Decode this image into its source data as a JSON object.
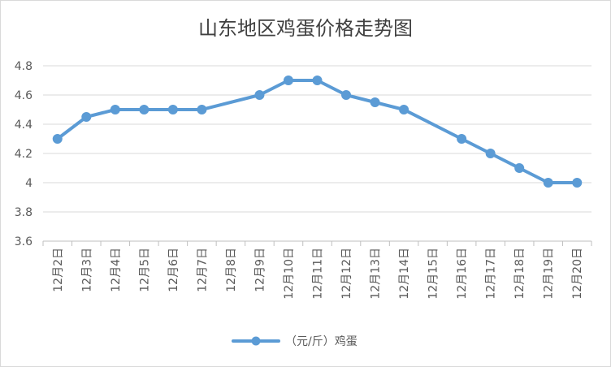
{
  "chart_data": {
    "type": "line",
    "title": "山东地区鸡蛋价格走势图",
    "xlabel": "",
    "ylabel": "",
    "categories": [
      "12月2日",
      "12月3日",
      "12月4日",
      "12月5日",
      "12月6日",
      "12月7日",
      "12月8日",
      "12月9日",
      "12月10日",
      "12月11日",
      "12月12日",
      "12月13日",
      "12月14日",
      "12月15日",
      "12月16日",
      "12月17日",
      "12月18日",
      "12月19日",
      "12月20日"
    ],
    "ylim": [
      3.6,
      4.8
    ],
    "yticks": [
      "3.6",
      "3.8",
      "4",
      "4.2",
      "4.4",
      "4.6",
      "4.8"
    ],
    "grid": true,
    "legend_position": "bottom",
    "series": [
      {
        "name": "（元/斤）鸡蛋",
        "color": "#5b9bd5",
        "points": [
          {
            "x": "12月2日",
            "y": 4.3
          },
          {
            "x": "12月3日",
            "y": 4.45
          },
          {
            "x": "12月4日",
            "y": 4.5
          },
          {
            "x": "12月5日",
            "y": 4.5
          },
          {
            "x": "12月6日",
            "y": 4.5
          },
          {
            "x": "12月7日",
            "y": 4.5
          },
          {
            "x": "12月9日",
            "y": 4.6
          },
          {
            "x": "12月10日",
            "y": 4.7
          },
          {
            "x": "12月11日",
            "y": 4.7
          },
          {
            "x": "12月12日",
            "y": 4.6
          },
          {
            "x": "12月13日",
            "y": 4.55
          },
          {
            "x": "12月14日",
            "y": 4.5
          },
          {
            "x": "12月16日",
            "y": 4.3
          },
          {
            "x": "12月17日",
            "y": 4.2
          },
          {
            "x": "12月18日",
            "y": 4.1
          },
          {
            "x": "12月19日",
            "y": 4.0
          },
          {
            "x": "12月20日",
            "y": 4.0
          }
        ]
      }
    ]
  }
}
